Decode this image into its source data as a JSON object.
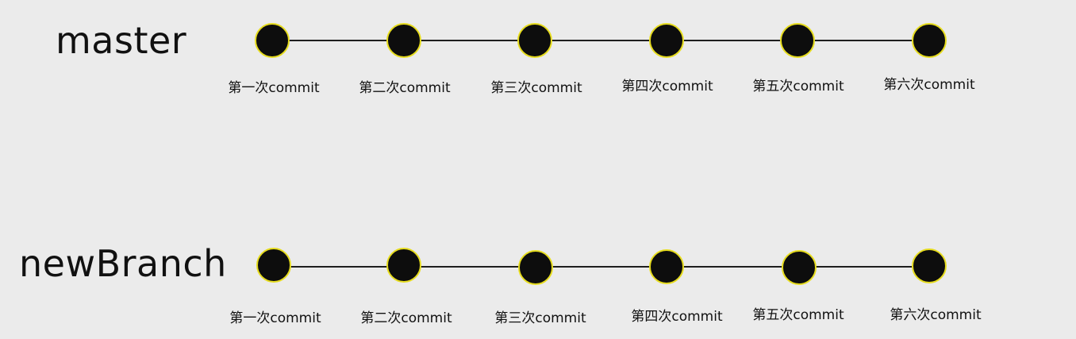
{
  "branches": [
    {
      "name": "master",
      "commits": [
        "第一次commit",
        "第二次commit",
        "第三次commit",
        "第四次commit",
        "第五次commit",
        "第六次commit"
      ]
    },
    {
      "name": "newBranch",
      "commits": [
        "第一次commit",
        "第二次commit",
        "第三次commit",
        "第四次commit",
        "第五次commit",
        "第六次commit"
      ]
    }
  ],
  "colors": {
    "background": "#ebebeb",
    "node_fill": "#0d0d0d",
    "node_outline": "#e6dc1e",
    "line": "#1e1e1e",
    "text": "#111111"
  }
}
